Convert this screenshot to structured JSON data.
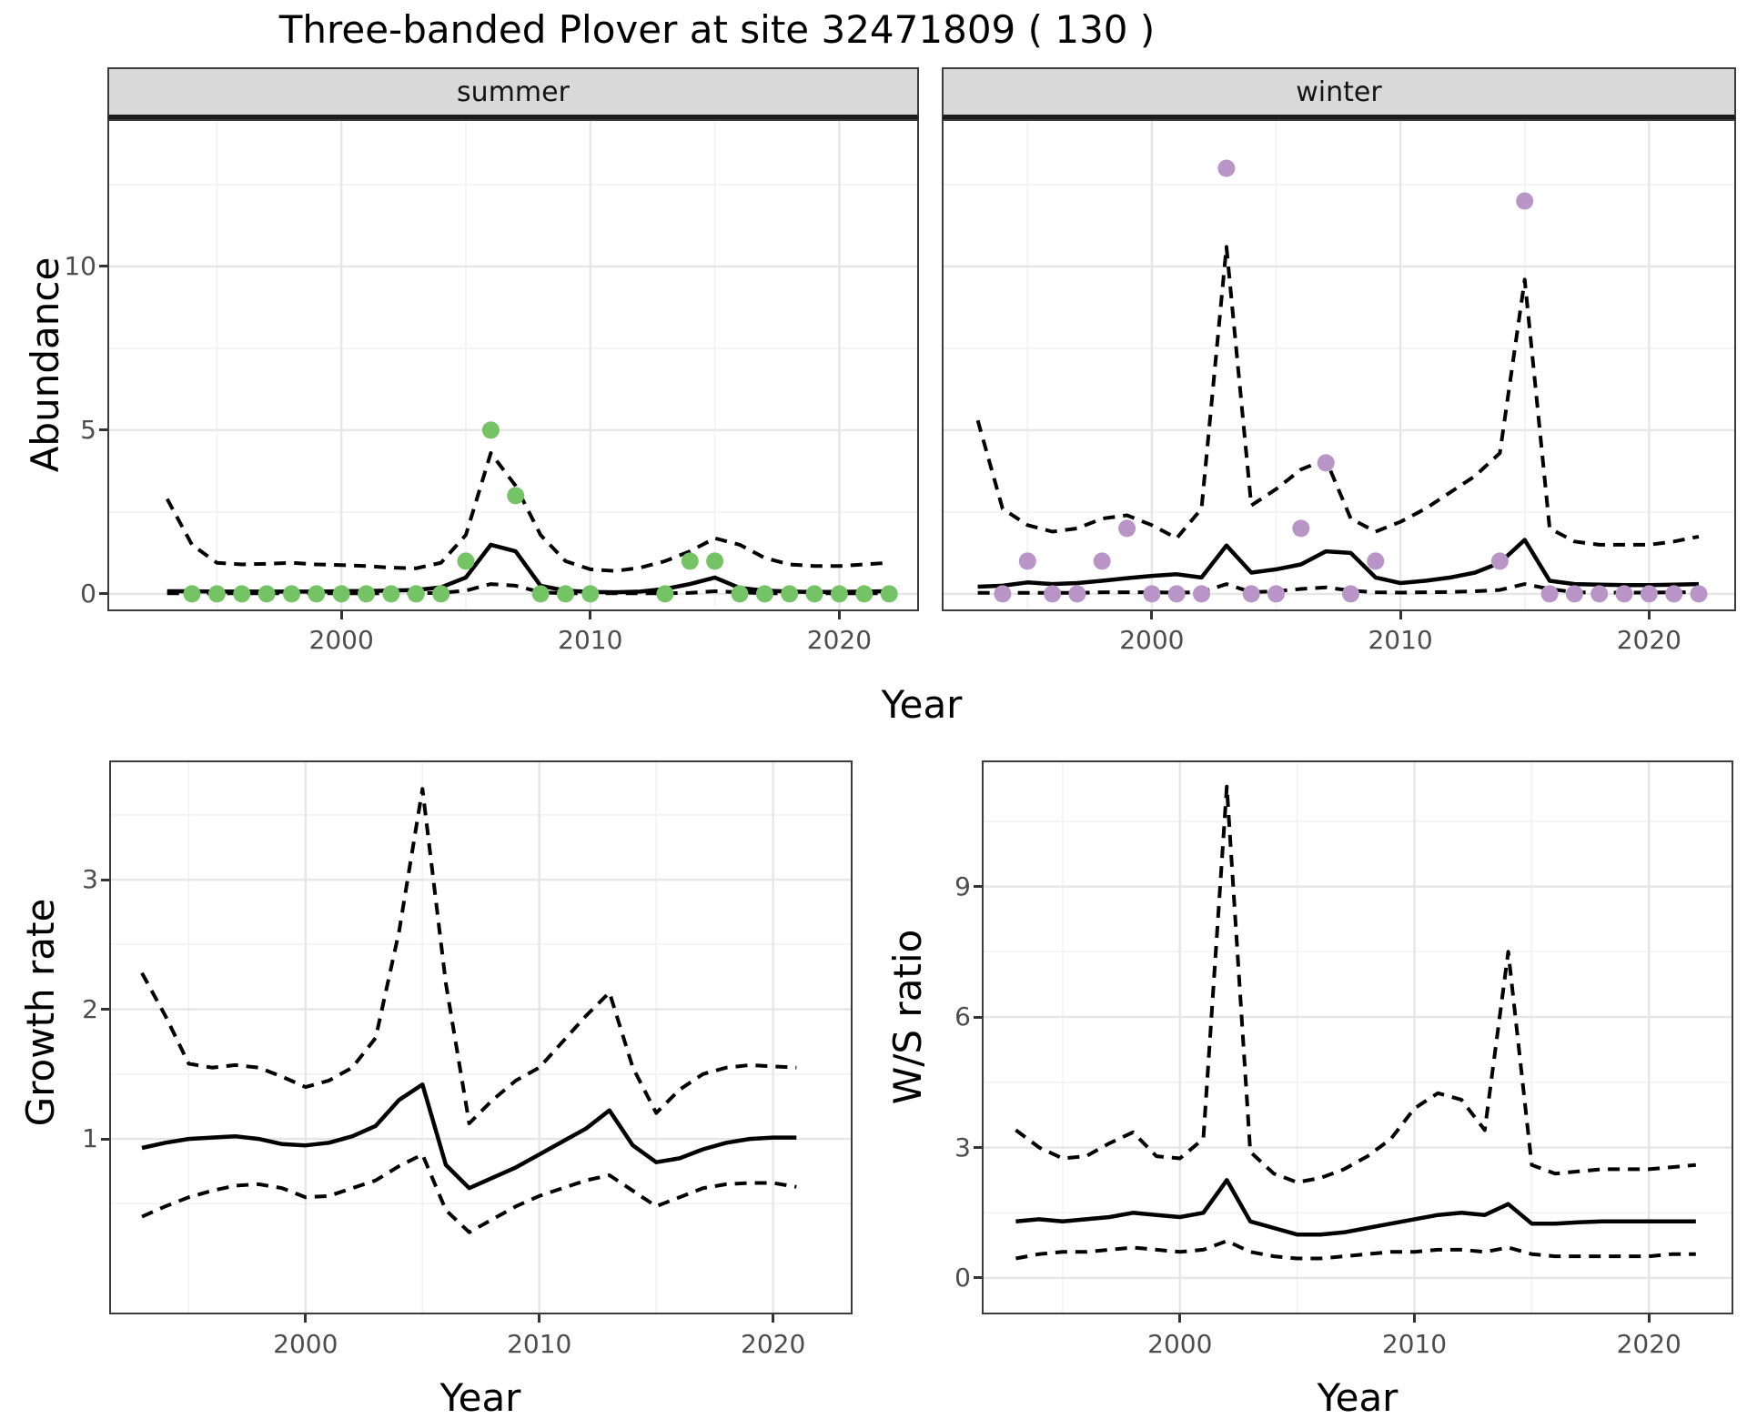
{
  "title": "Three-banded Plover at site 32471809 ( 130 )",
  "facets": {
    "summer_label": "summer",
    "winter_label": "winter"
  },
  "axes": {
    "abundance_label": "Abundance",
    "year_label": "Year",
    "growth_label": "Growth rate",
    "ws_label": "W/S ratio"
  },
  "colors": {
    "summer_point": "#74C365",
    "winter_point": "#B894C7",
    "line": "#000000",
    "grid_major": "#E6E6E6",
    "grid_minor": "#F2F2F2",
    "strip_bg": "#D9D9D9",
    "panel_border": "#3C3C3C",
    "tick_text": "#4D4D4D"
  },
  "chart_data": [
    {
      "id": "abundance_summer",
      "type": "line",
      "facet_label": "summer",
      "ylabel": "Abundance",
      "xlabel": "Year",
      "xlim": [
        1990.6,
        2023.2
      ],
      "ylim": [
        -0.53,
        14.5
      ],
      "x_major": [
        2000,
        2010,
        2020
      ],
      "x_minor": [
        1995,
        2005,
        2015
      ],
      "x_tick_labels": [
        "2000",
        "2010",
        "2020"
      ],
      "y_major": [
        0,
        5,
        10
      ],
      "y_minor": [
        2.5,
        7.5,
        12.5
      ],
      "y_tick_labels": [
        "0",
        "5",
        "10"
      ],
      "years": [
        1993,
        1994,
        1995,
        1996,
        1997,
        1998,
        1999,
        2000,
        2001,
        2002,
        2003,
        2004,
        2005,
        2006,
        2007,
        2008,
        2009,
        2010,
        2011,
        2012,
        2013,
        2014,
        2015,
        2016,
        2017,
        2018,
        2019,
        2020,
        2021,
        2022
      ],
      "series": [
        {
          "name": "median_fit",
          "style": "solid",
          "values": [
            0.08,
            0.08,
            0.07,
            0.07,
            0.07,
            0.07,
            0.07,
            0.08,
            0.09,
            0.1,
            0.12,
            0.2,
            0.5,
            1.5,
            1.3,
            0.25,
            0.1,
            0.06,
            0.05,
            0.07,
            0.15,
            0.3,
            0.5,
            0.18,
            0.1,
            0.07,
            0.06,
            0.06,
            0.07,
            0.08
          ]
        },
        {
          "name": "upper_ci",
          "style": "dashed",
          "values": [
            2.9,
            1.5,
            0.95,
            0.9,
            0.92,
            0.95,
            0.9,
            0.88,
            0.85,
            0.8,
            0.78,
            0.95,
            1.8,
            4.3,
            3.3,
            1.8,
            1.0,
            0.75,
            0.7,
            0.8,
            1.0,
            1.3,
            1.7,
            1.5,
            1.1,
            0.9,
            0.85,
            0.85,
            0.9,
            0.95
          ]
        },
        {
          "name": "lower_ci",
          "style": "dashed",
          "values": [
            0.02,
            0.02,
            0.02,
            0.02,
            0.02,
            0.02,
            0.02,
            0.02,
            0.02,
            0.02,
            0.02,
            0.03,
            0.1,
            0.3,
            0.25,
            0.05,
            0.02,
            0.02,
            0.02,
            0.02,
            0.02,
            0.03,
            0.08,
            0.05,
            0.02,
            0.02,
            0.02,
            0.02,
            0.02,
            0.02
          ]
        }
      ],
      "points": {
        "x": [
          1994,
          1995,
          1996,
          1997,
          1998,
          1999,
          2000,
          2001,
          2002,
          2003,
          2004,
          2005,
          2006,
          2007,
          2008,
          2009,
          2010,
          2013,
          2014,
          2015,
          2016,
          2017,
          2018,
          2019,
          2020,
          2021,
          2022
        ],
        "y": [
          0,
          0,
          0,
          0,
          0,
          0,
          0,
          0,
          0,
          0,
          0,
          1,
          5,
          3,
          0,
          0,
          0,
          0,
          1,
          1,
          0,
          0,
          0,
          0,
          0,
          0,
          0
        ],
        "color": "#74C365"
      }
    },
    {
      "id": "abundance_winter",
      "type": "line",
      "facet_label": "winter",
      "ylabel": "Abundance",
      "xlabel": "Year",
      "xlim": [
        1991.55,
        2023.5
      ],
      "ylim": [
        -0.53,
        14.5
      ],
      "x_major": [
        2000,
        2010,
        2020
      ],
      "x_minor": [
        1995,
        2005,
        2015
      ],
      "x_tick_labels": [
        "2000",
        "2010",
        "2020"
      ],
      "y_major": [
        0,
        5,
        10
      ],
      "y_minor": [
        2.5,
        7.5,
        12.5
      ],
      "y_tick_labels": [],
      "years": [
        1993,
        1994,
        1995,
        1996,
        1997,
        1998,
        1999,
        2000,
        2001,
        2002,
        2003,
        2004,
        2005,
        2006,
        2007,
        2008,
        2009,
        2010,
        2011,
        2012,
        2013,
        2014,
        2015,
        2016,
        2017,
        2018,
        2019,
        2020,
        2021,
        2022
      ],
      "series": [
        {
          "name": "median_fit",
          "style": "solid",
          "values": [
            0.22,
            0.25,
            0.35,
            0.3,
            0.33,
            0.4,
            0.48,
            0.55,
            0.6,
            0.5,
            1.48,
            0.65,
            0.75,
            0.9,
            1.3,
            1.25,
            0.5,
            0.33,
            0.4,
            0.5,
            0.65,
            0.95,
            1.65,
            0.4,
            0.3,
            0.28,
            0.27,
            0.27,
            0.28,
            0.3
          ]
        },
        {
          "name": "upper_ci",
          "style": "dashed",
          "values": [
            5.3,
            2.6,
            2.1,
            1.9,
            2.0,
            2.3,
            2.4,
            2.1,
            1.7,
            2.6,
            10.6,
            2.7,
            3.2,
            3.8,
            4.1,
            2.3,
            1.9,
            2.2,
            2.6,
            3.1,
            3.6,
            4.3,
            9.6,
            2.0,
            1.6,
            1.5,
            1.5,
            1.5,
            1.6,
            1.75
          ]
        },
        {
          "name": "lower_ci",
          "style": "dashed",
          "values": [
            0.03,
            0.03,
            0.03,
            0.03,
            0.03,
            0.05,
            0.05,
            0.05,
            0.04,
            0.05,
            0.3,
            0.05,
            0.08,
            0.15,
            0.2,
            0.1,
            0.05,
            0.04,
            0.05,
            0.06,
            0.08,
            0.12,
            0.3,
            0.15,
            0.05,
            0.04,
            0.04,
            0.04,
            0.05,
            0.05
          ]
        }
      ],
      "points": {
        "x": [
          1994,
          1995,
          1996,
          1997,
          1998,
          1999,
          2000,
          2001,
          2002,
          2003,
          2004,
          2005,
          2006,
          2007,
          2008,
          2009,
          2014,
          2015,
          2016,
          2017,
          2018,
          2019,
          2020,
          2021,
          2022
        ],
        "y": [
          0,
          1,
          0,
          0,
          1,
          2,
          0,
          0,
          0,
          13,
          0,
          0,
          2,
          4,
          0,
          1,
          1,
          12,
          0,
          0,
          0,
          0,
          0,
          0,
          0
        ],
        "color": "#B894C7"
      }
    },
    {
      "id": "growth_rate",
      "type": "line",
      "facet_label": "",
      "ylabel": "Growth rate",
      "xlabel": "Year",
      "xlim": [
        1991.6,
        2023.4
      ],
      "ylim": [
        -0.354,
        3.92
      ],
      "x_major": [
        2000,
        2010,
        2020
      ],
      "x_minor": [
        1995,
        2005,
        2015
      ],
      "x_tick_labels": [
        "2000",
        "2010",
        "2020"
      ],
      "y_major": [
        1,
        2,
        3
      ],
      "y_minor": [
        0.5,
        1.5,
        2.5,
        3.5
      ],
      "y_tick_labels": [
        "1",
        "2",
        "3"
      ],
      "years": [
        1993,
        1994,
        1995,
        1996,
        1997,
        1998,
        1999,
        2000,
        2001,
        2002,
        2003,
        2004,
        2005,
        2006,
        2007,
        2008,
        2009,
        2010,
        2011,
        2012,
        2013,
        2014,
        2015,
        2016,
        2017,
        2018,
        2019,
        2020,
        2021
      ],
      "series": [
        {
          "name": "median_fit",
          "style": "solid",
          "values": [
            0.93,
            0.97,
            1.0,
            1.01,
            1.02,
            1.0,
            0.96,
            0.95,
            0.97,
            1.02,
            1.1,
            1.3,
            1.42,
            0.8,
            0.62,
            0.7,
            0.78,
            0.88,
            0.98,
            1.08,
            1.22,
            0.95,
            0.82,
            0.85,
            0.92,
            0.97,
            1.0,
            1.01,
            1.01
          ]
        },
        {
          "name": "upper_ci",
          "style": "dashed",
          "values": [
            2.28,
            1.95,
            1.58,
            1.55,
            1.57,
            1.55,
            1.48,
            1.4,
            1.45,
            1.55,
            1.78,
            2.6,
            3.7,
            2.2,
            1.12,
            1.3,
            1.45,
            1.55,
            1.75,
            1.95,
            2.13,
            1.55,
            1.2,
            1.38,
            1.5,
            1.55,
            1.57,
            1.56,
            1.55
          ]
        },
        {
          "name": "lower_ci",
          "style": "dashed",
          "values": [
            0.4,
            0.48,
            0.55,
            0.6,
            0.64,
            0.65,
            0.62,
            0.55,
            0.56,
            0.62,
            0.68,
            0.79,
            0.88,
            0.45,
            0.28,
            0.38,
            0.48,
            0.56,
            0.62,
            0.68,
            0.72,
            0.6,
            0.48,
            0.55,
            0.62,
            0.65,
            0.66,
            0.66,
            0.63
          ]
        }
      ],
      "points": null
    },
    {
      "id": "ws_ratio",
      "type": "line",
      "facet_label": "",
      "ylabel": "W/S ratio",
      "xlabel": "Year",
      "xlim": [
        1991.55,
        2023.6
      ],
      "ylim": [
        -0.837,
        11.9
      ],
      "x_major": [
        2000,
        2010,
        2020
      ],
      "x_minor": [
        1995,
        2005,
        2015
      ],
      "x_tick_labels": [
        "2000",
        "2010",
        "2020"
      ],
      "y_major": [
        0,
        3,
        6,
        9
      ],
      "y_minor": [
        1.5,
        4.5,
        7.5,
        10.5
      ],
      "y_tick_labels": [
        "0",
        "3",
        "6",
        "9"
      ],
      "years": [
        1993,
        1994,
        1995,
        1996,
        1997,
        1998,
        1999,
        2000,
        2001,
        2002,
        2003,
        2004,
        2005,
        2006,
        2007,
        2008,
        2009,
        2010,
        2011,
        2012,
        2013,
        2014,
        2015,
        2016,
        2017,
        2018,
        2019,
        2020,
        2021,
        2022
      ],
      "series": [
        {
          "name": "median_fit",
          "style": "solid",
          "values": [
            1.3,
            1.35,
            1.3,
            1.35,
            1.4,
            1.5,
            1.45,
            1.4,
            1.5,
            2.25,
            1.3,
            1.15,
            1.0,
            1.0,
            1.05,
            1.15,
            1.25,
            1.35,
            1.45,
            1.5,
            1.45,
            1.7,
            1.25,
            1.25,
            1.28,
            1.3,
            1.3,
            1.3,
            1.3,
            1.3
          ]
        },
        {
          "name": "upper_ci",
          "style": "dashed",
          "values": [
            3.4,
            3.0,
            2.75,
            2.8,
            3.1,
            3.35,
            2.8,
            2.75,
            3.2,
            11.3,
            2.9,
            2.4,
            2.2,
            2.3,
            2.5,
            2.8,
            3.2,
            3.9,
            4.25,
            4.1,
            3.4,
            7.5,
            2.6,
            2.4,
            2.45,
            2.5,
            2.5,
            2.5,
            2.55,
            2.6
          ]
        },
        {
          "name": "lower_ci",
          "style": "dashed",
          "values": [
            0.45,
            0.55,
            0.6,
            0.6,
            0.65,
            0.7,
            0.65,
            0.6,
            0.65,
            0.85,
            0.6,
            0.5,
            0.45,
            0.45,
            0.5,
            0.55,
            0.6,
            0.6,
            0.65,
            0.65,
            0.6,
            0.7,
            0.55,
            0.5,
            0.5,
            0.5,
            0.5,
            0.5,
            0.55,
            0.55
          ]
        }
      ],
      "points": null
    }
  ]
}
